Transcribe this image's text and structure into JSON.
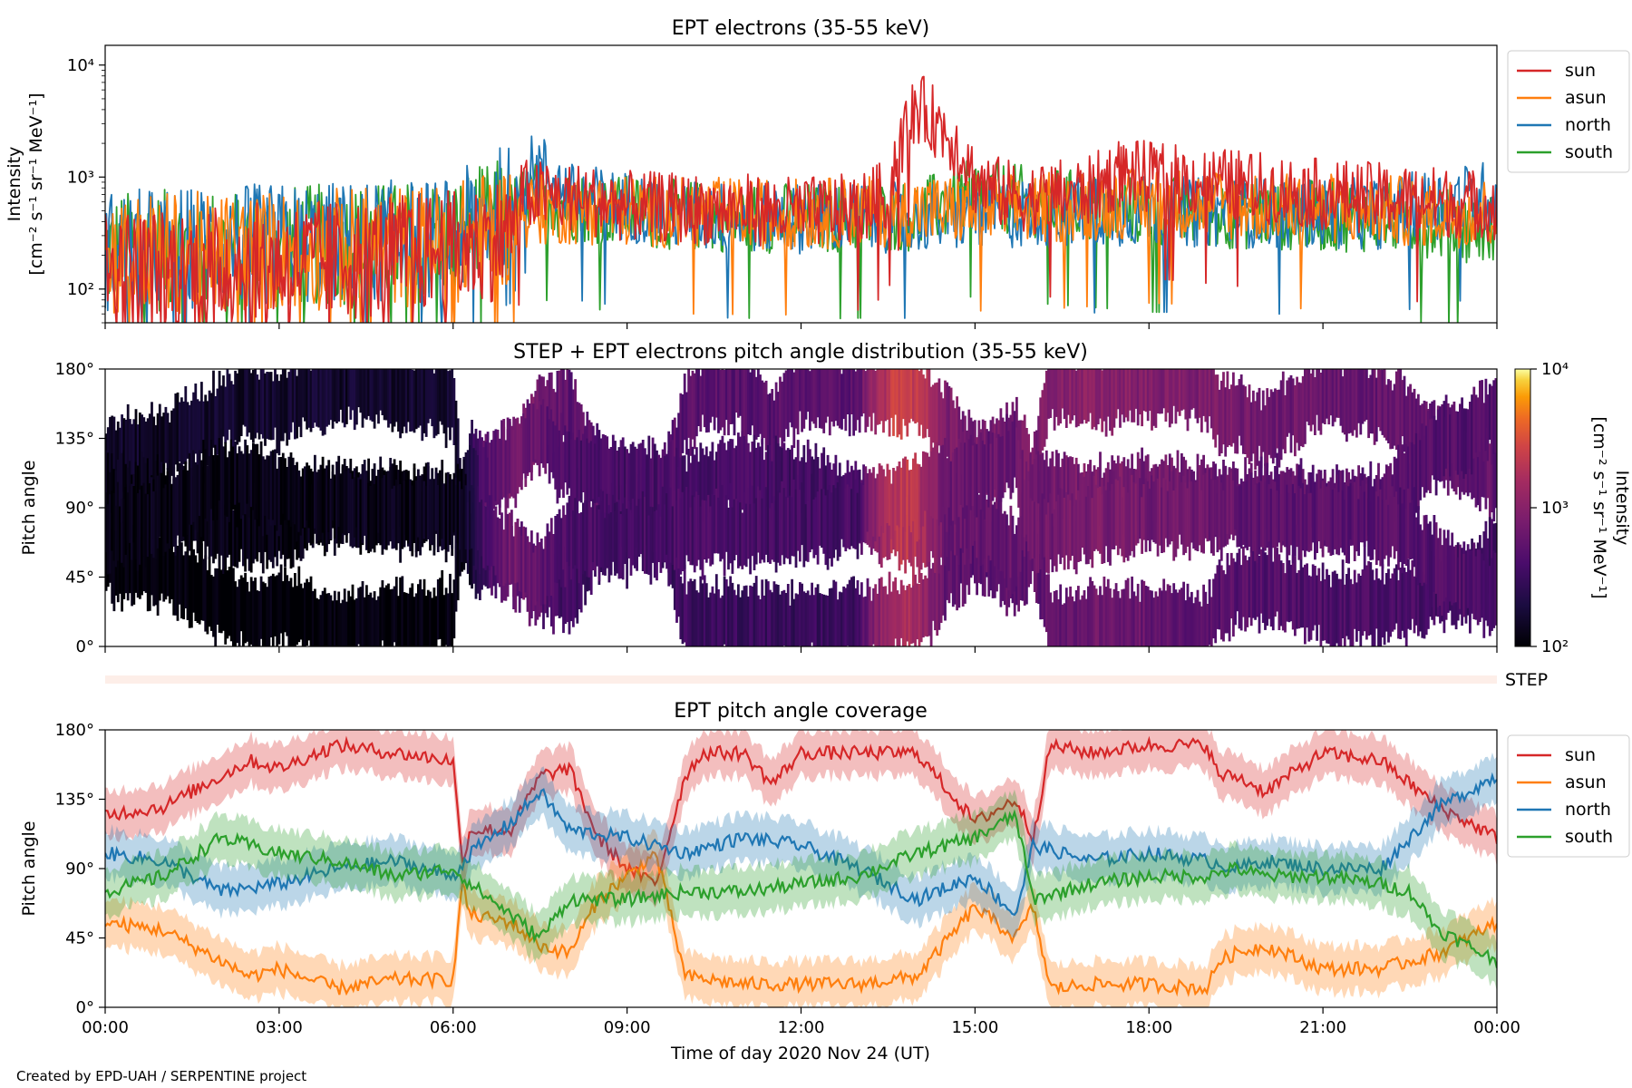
{
  "figure": {
    "credit": "Created by EPD-UAH / SERPENTINE project",
    "xlabel": "Time of day 2020 Nov 24 (UT)",
    "xticks": [
      "00:00",
      "03:00",
      "06:00",
      "09:00",
      "12:00",
      "15:00",
      "18:00",
      "21:00",
      "00:00"
    ]
  },
  "chart_data": [
    {
      "type": "line",
      "title": "EPT electrons (35-55 keV)",
      "ylabel": "Intensity",
      "yunit": "[cm⁻² s⁻¹ sr⁻¹ MeV⁻¹]",
      "yscale": "log",
      "ylim": [
        50,
        15000
      ],
      "yticks": [
        "10²",
        "10³",
        "10⁴"
      ],
      "xlim_hours": [
        0,
        24
      ],
      "legend_position": "outside-right-top",
      "series": [
        {
          "name": "sun",
          "color": "#d62728",
          "x": [
            0,
            1,
            2,
            3,
            4,
            5,
            6,
            6.5,
            7,
            7.2,
            8,
            9,
            10,
            11,
            12,
            13,
            13.5,
            13.8,
            14,
            14.2,
            14.6,
            15,
            15.5,
            16,
            17,
            17.5,
            18,
            19,
            20,
            21,
            22,
            23,
            24
          ],
          "y": [
            150,
            150,
            160,
            170,
            180,
            200,
            220,
            250,
            320,
            700,
            650,
            550,
            520,
            520,
            480,
            520,
            700,
            2500,
            4200,
            3500,
            2200,
            900,
            700,
            650,
            750,
            1100,
            1000,
            900,
            800,
            700,
            650,
            600,
            550
          ]
        },
        {
          "name": "asun",
          "color": "#ff7f0e",
          "x": [
            0,
            1,
            2,
            3,
            4,
            5,
            6,
            7,
            7.3,
            8,
            10,
            12,
            14,
            16,
            18,
            20,
            22,
            24
          ],
          "y": [
            200,
            210,
            210,
            220,
            230,
            240,
            250,
            380,
            500,
            520,
            480,
            470,
            500,
            520,
            600,
            550,
            500,
            480
          ]
        },
        {
          "name": "north",
          "color": "#1f77b4",
          "x": [
            0,
            1,
            2,
            3,
            4,
            5,
            6,
            7,
            7.2,
            7.5,
            8,
            10,
            12,
            14,
            16,
            18,
            20,
            22,
            24
          ],
          "y": [
            220,
            230,
            240,
            250,
            260,
            270,
            280,
            600,
            1100,
            1200,
            650,
            450,
            430,
            440,
            480,
            500,
            480,
            470,
            700
          ]
        },
        {
          "name": "south",
          "color": "#2ca02c",
          "x": [
            0,
            1,
            2,
            3,
            4,
            5,
            6,
            7,
            7.3,
            8,
            10,
            12,
            14,
            15,
            16,
            18,
            20,
            22,
            24
          ],
          "y": [
            210,
            220,
            230,
            240,
            250,
            260,
            280,
            450,
            700,
            550,
            450,
            430,
            450,
            700,
            600,
            500,
            460,
            440,
            330
          ]
        }
      ]
    },
    {
      "type": "heatmap",
      "title": "STEP + EPT electrons pitch angle distribution (35-55 keV)",
      "ylabel": "Pitch angle",
      "ylim": [
        0,
        180
      ],
      "yticks": [
        "0°",
        "45°",
        "90°",
        "135°",
        "180°"
      ],
      "colorbar": {
        "label": "Intensity",
        "unit": "[cm⁻² s⁻¹ sr⁻¹ MeV⁻¹]",
        "scale": "log",
        "range": [
          100,
          10000
        ],
        "ticks": [
          "10²",
          "10³",
          "10⁴"
        ],
        "colormap": "inferno"
      },
      "intensity_hours": [
        0,
        6.2,
        7,
        8,
        9,
        10,
        11,
        12,
        13,
        13.8,
        14.5,
        15,
        16,
        17,
        18,
        19,
        20,
        21,
        22,
        23,
        24
      ],
      "intensity_values": [
        130,
        140,
        800,
        450,
        420,
        430,
        420,
        400,
        420,
        2500,
        700,
        650,
        700,
        900,
        800,
        700,
        600,
        550,
        520,
        500,
        480
      ]
    },
    {
      "type": "bar",
      "label": "STEP",
      "color": "#fdeee8"
    },
    {
      "type": "line",
      "title": "EPT pitch angle coverage",
      "ylabel": "Pitch angle",
      "ylim": [
        0,
        180
      ],
      "yticks": [
        "0°",
        "45°",
        "90°",
        "135°",
        "180°"
      ],
      "band_halfwidth_deg": 15,
      "legend_position": "outside-right-top",
      "series": [
        {
          "name": "sun",
          "color": "#d62728",
          "x": [
            0,
            1,
            2,
            2.5,
            3,
            4,
            5,
            6,
            6.15,
            6.3,
            7,
            7.5,
            8,
            8.5,
            9,
            9.5,
            10,
            10.3,
            11,
            11.5,
            12,
            13,
            14,
            15,
            15.7,
            16,
            16.3,
            17,
            18,
            19,
            19.2,
            19.5,
            20,
            21,
            22,
            23,
            24
          ],
          "y": [
            125,
            130,
            150,
            160,
            155,
            170,
            165,
            160,
            95,
            115,
            115,
            150,
            155,
            110,
            90,
            80,
            150,
            165,
            165,
            145,
            165,
            165,
            165,
            120,
            135,
            110,
            170,
            165,
            170,
            170,
            150,
            150,
            140,
            165,
            160,
            130,
            110
          ]
        },
        {
          "name": "asun",
          "color": "#ff7f0e",
          "x": [
            0,
            1,
            2,
            2.5,
            3,
            4,
            5,
            6,
            6.15,
            6.3,
            7,
            7.5,
            8,
            8.5,
            9,
            9.5,
            10,
            11,
            12,
            13,
            14,
            15,
            15.7,
            16,
            16.3,
            17,
            18,
            19,
            19.2,
            19.5,
            20,
            21,
            22,
            23,
            24
          ],
          "y": [
            55,
            50,
            30,
            20,
            25,
            12,
            18,
            18,
            80,
            60,
            55,
            40,
            35,
            70,
            85,
            100,
            20,
            15,
            15,
            15,
            20,
            65,
            45,
            65,
            12,
            15,
            15,
            12,
            30,
            35,
            40,
            25,
            25,
            35,
            55
          ]
        },
        {
          "name": "north",
          "color": "#1f77b4",
          "x": [
            0,
            1,
            2,
            3,
            4,
            5,
            6,
            6.3,
            7,
            7.5,
            8,
            9,
            10,
            11,
            12,
            13,
            14,
            15,
            15.7,
            16,
            17,
            18,
            19,
            19.5,
            20,
            21,
            22,
            22.5,
            23,
            24
          ],
          "y": [
            100,
            95,
            75,
            80,
            90,
            95,
            85,
            100,
            120,
            140,
            115,
            110,
            100,
            110,
            105,
            90,
            70,
            85,
            60,
            105,
            95,
            100,
            95,
            90,
            95,
            90,
            90,
            110,
            130,
            150
          ]
        },
        {
          "name": "south",
          "color": "#2ca02c",
          "x": [
            0,
            1,
            2,
            3,
            4,
            5,
            6,
            6.3,
            7,
            7.5,
            8,
            9,
            10,
            11,
            12,
            13,
            14,
            15,
            15.7,
            16,
            17,
            18,
            19,
            19.5,
            20,
            21,
            22,
            22.5,
            23,
            24
          ],
          "y": [
            75,
            85,
            110,
            100,
            95,
            85,
            90,
            80,
            60,
            45,
            70,
            70,
            75,
            75,
            80,
            85,
            100,
            110,
            125,
            70,
            80,
            85,
            85,
            90,
            85,
            85,
            80,
            75,
            50,
            30
          ]
        }
      ]
    }
  ]
}
